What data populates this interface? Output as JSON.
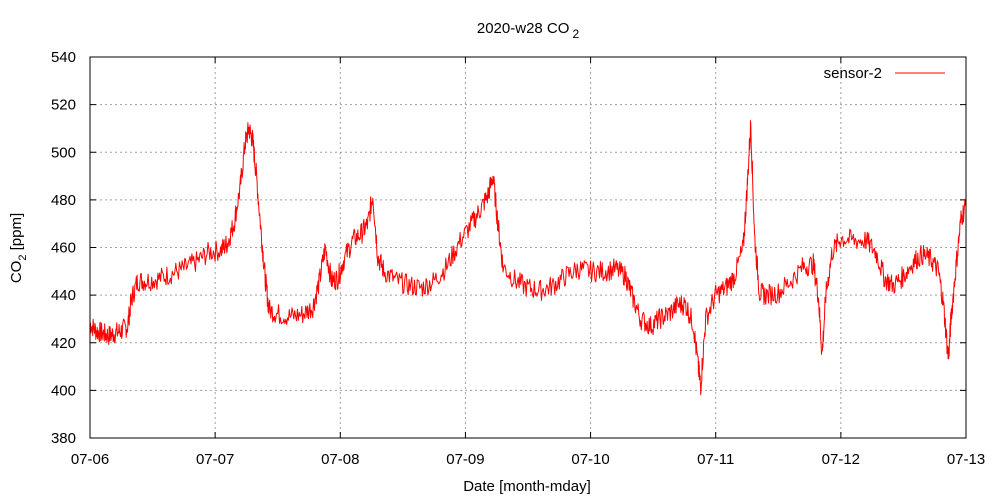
{
  "chart_data": {
    "type": "line",
    "title": "2020-w28 CO",
    "title_subscript": "2",
    "xlabel": "Date [month-mday]",
    "ylabel": "CO",
    "ylabel_subscript": "2",
    "ylabel_unit": " [ppm]",
    "x_ticks": [
      "07-06",
      "07-07",
      "07-08",
      "07-09",
      "07-10",
      "07-11",
      "07-12",
      "07-13"
    ],
    "xlim_days": [
      0,
      7
    ],
    "y_ticks": [
      380,
      400,
      420,
      440,
      460,
      480,
      500,
      520,
      540
    ],
    "ylim": [
      380,
      540
    ],
    "grid": true,
    "legend_position": "top-right",
    "series": [
      {
        "name": "sensor-2",
        "color": "#ff0000",
        "points": [
          [
            0.0,
            428
          ],
          [
            0.05,
            425
          ],
          [
            0.1,
            424
          ],
          [
            0.15,
            423
          ],
          [
            0.2,
            424
          ],
          [
            0.25,
            425
          ],
          [
            0.3,
            427
          ],
          [
            0.33,
            438
          ],
          [
            0.38,
            446
          ],
          [
            0.45,
            446
          ],
          [
            0.55,
            447
          ],
          [
            0.65,
            449
          ],
          [
            0.75,
            451
          ],
          [
            0.85,
            454
          ],
          [
            0.95,
            458
          ],
          [
            1.05,
            459
          ],
          [
            1.1,
            462
          ],
          [
            1.15,
            470
          ],
          [
            1.2,
            485
          ],
          [
            1.24,
            504
          ],
          [
            1.27,
            510
          ],
          [
            1.3,
            505
          ],
          [
            1.33,
            490
          ],
          [
            1.37,
            465
          ],
          [
            1.4,
            447
          ],
          [
            1.43,
            434
          ],
          [
            1.5,
            432
          ],
          [
            1.6,
            431
          ],
          [
            1.7,
            432
          ],
          [
            1.78,
            435
          ],
          [
            1.83,
            445
          ],
          [
            1.88,
            460
          ],
          [
            1.93,
            446
          ],
          [
            1.98,
            447
          ],
          [
            2.03,
            455
          ],
          [
            2.1,
            463
          ],
          [
            2.17,
            466
          ],
          [
            2.22,
            470
          ],
          [
            2.26,
            482
          ],
          [
            2.3,
            456
          ],
          [
            2.35,
            450
          ],
          [
            2.45,
            446
          ],
          [
            2.55,
            444
          ],
          [
            2.65,
            443
          ],
          [
            2.75,
            446
          ],
          [
            2.85,
            452
          ],
          [
            2.95,
            462
          ],
          [
            3.05,
            470
          ],
          [
            3.12,
            476
          ],
          [
            3.18,
            482
          ],
          [
            3.22,
            490
          ],
          [
            3.26,
            470
          ],
          [
            3.3,
            452
          ],
          [
            3.4,
            446
          ],
          [
            3.5,
            443
          ],
          [
            3.6,
            442
          ],
          [
            3.7,
            444
          ],
          [
            3.8,
            448
          ],
          [
            3.9,
            451
          ],
          [
            4.0,
            450
          ],
          [
            4.1,
            450
          ],
          [
            4.2,
            451
          ],
          [
            4.28,
            448
          ],
          [
            4.33,
            440
          ],
          [
            4.4,
            430
          ],
          [
            4.48,
            427
          ],
          [
            4.55,
            430
          ],
          [
            4.62,
            432
          ],
          [
            4.7,
            436
          ],
          [
            4.76,
            436
          ],
          [
            4.82,
            428
          ],
          [
            4.86,
            410
          ],
          [
            4.88,
            402
          ],
          [
            4.92,
            430
          ],
          [
            5.0,
            440
          ],
          [
            5.08,
            443
          ],
          [
            5.15,
            448
          ],
          [
            5.22,
            460
          ],
          [
            5.25,
            484
          ],
          [
            5.28,
            512
          ],
          [
            5.31,
            465
          ],
          [
            5.35,
            441
          ],
          [
            5.4,
            440
          ],
          [
            5.5,
            441
          ],
          [
            5.6,
            446
          ],
          [
            5.7,
            452
          ],
          [
            5.78,
            453
          ],
          [
            5.82,
            440
          ],
          [
            5.85,
            415
          ],
          [
            5.88,
            440
          ],
          [
            5.93,
            458
          ],
          [
            6.0,
            464
          ],
          [
            6.1,
            463
          ],
          [
            6.2,
            463
          ],
          [
            6.28,
            458
          ],
          [
            6.35,
            447
          ],
          [
            6.42,
            444
          ],
          [
            6.5,
            448
          ],
          [
            6.58,
            454
          ],
          [
            6.65,
            457
          ],
          [
            6.72,
            455
          ],
          [
            6.78,
            450
          ],
          [
            6.82,
            436
          ],
          [
            6.86,
            413
          ],
          [
            6.88,
            430
          ],
          [
            6.92,
            452
          ],
          [
            6.96,
            472
          ],
          [
            7.0,
            478
          ]
        ]
      }
    ]
  }
}
